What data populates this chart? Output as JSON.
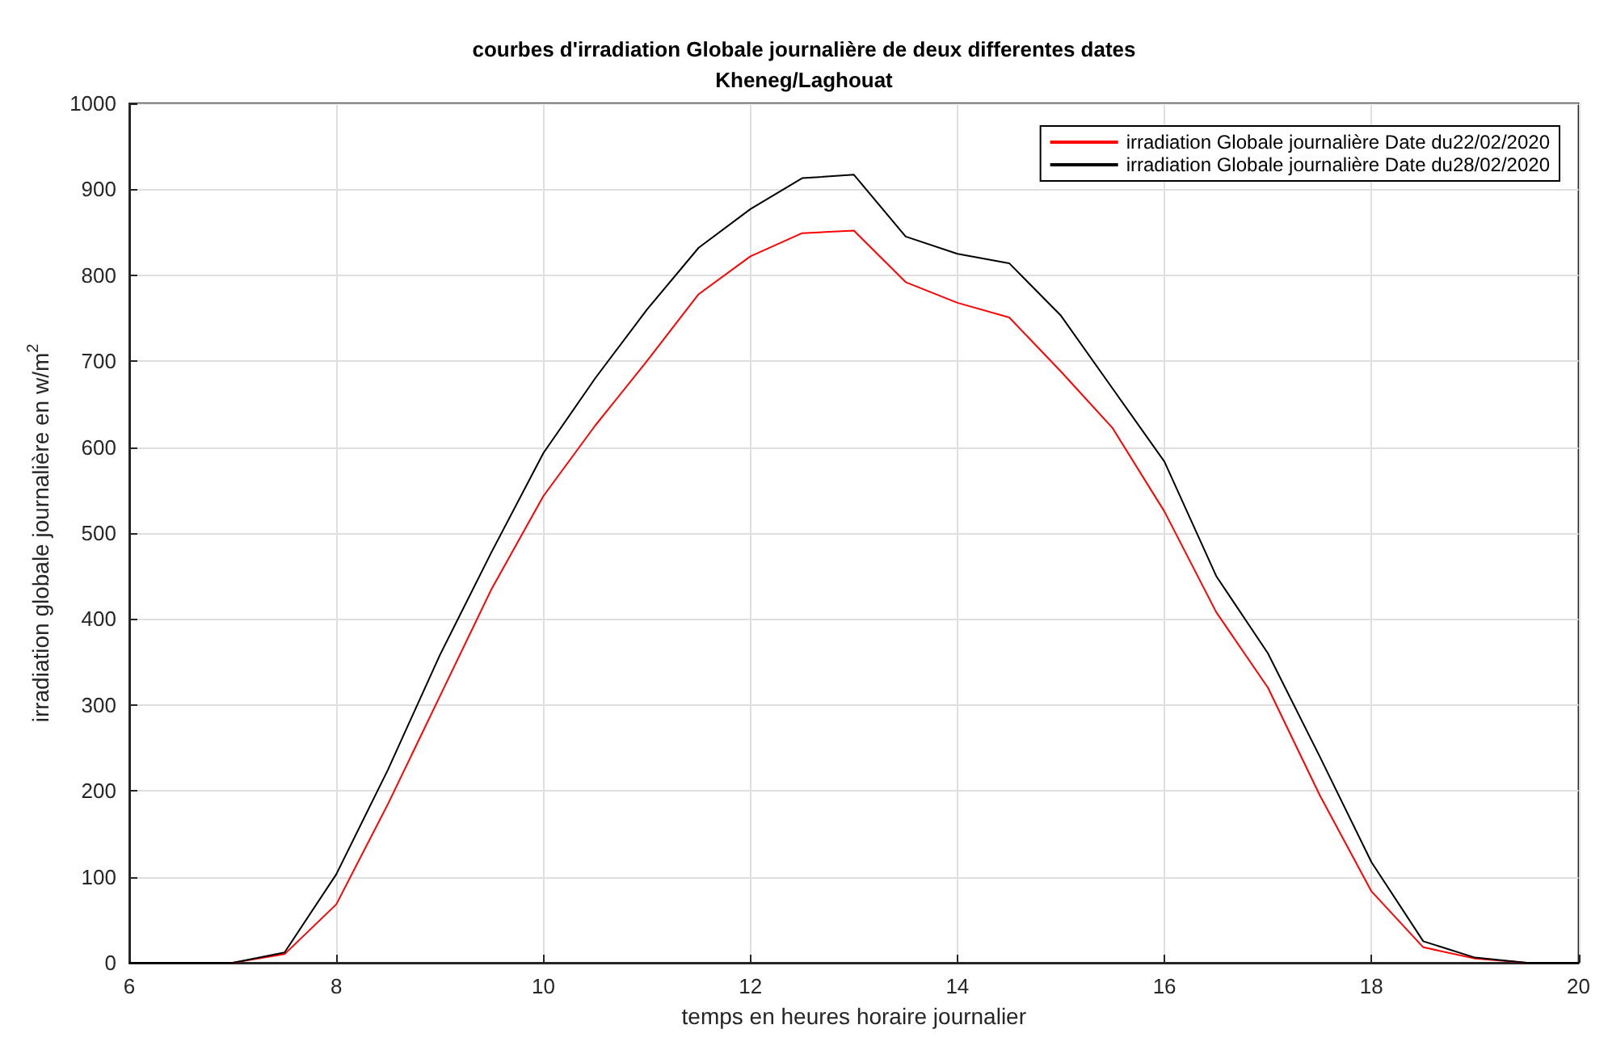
{
  "chart_data": {
    "type": "line",
    "title": "courbes d'irradiation Globale journalière de deux differentes dates\nKheneg/Laghouat",
    "xlabel": "temps en heures horaire journalier",
    "ylabel": "irradiation globale journalière en w/m$^{2}$",
    "x": [
      6,
      6.5,
      7,
      7.5,
      8,
      8.5,
      9,
      9.5,
      10,
      10.5,
      11,
      11.5,
      12,
      12.5,
      13,
      13.5,
      14,
      14.5,
      15,
      15.5,
      16,
      16.5,
      17,
      17.5,
      18,
      18.5,
      19,
      19.5,
      20
    ],
    "series": [
      {
        "name": "irradiation Globale journalière Date du22/02/2020",
        "color": "#ff0000",
        "values": [
          0,
          0,
          0,
          10,
          68,
          185,
          310,
          435,
          543,
          625,
          700,
          778,
          822,
          849,
          852,
          792,
          768,
          751,
          688,
          622,
          525,
          408,
          320,
          195,
          83,
          18,
          5,
          0,
          0
        ]
      },
      {
        "name": "irradiation Globale journalière Date du28/02/2020",
        "color": "#000000",
        "values": [
          0,
          0,
          0,
          12,
          103,
          225,
          358,
          478,
          593,
          680,
          760,
          832,
          877,
          913,
          917,
          845,
          825,
          814,
          753,
          668,
          583,
          450,
          360,
          240,
          117,
          25,
          6,
          0,
          0
        ]
      }
    ],
    "xlim": [
      6,
      20
    ],
    "xticks": [
      6,
      8,
      10,
      12,
      14,
      16,
      18,
      20
    ],
    "ylim": [
      0,
      1000
    ],
    "yticks": [
      0,
      100,
      200,
      300,
      400,
      500,
      600,
      700,
      800,
      900,
      1000
    ],
    "grid": true,
    "legend": "top right",
    "marker": "none",
    "line_style": "solid"
  }
}
